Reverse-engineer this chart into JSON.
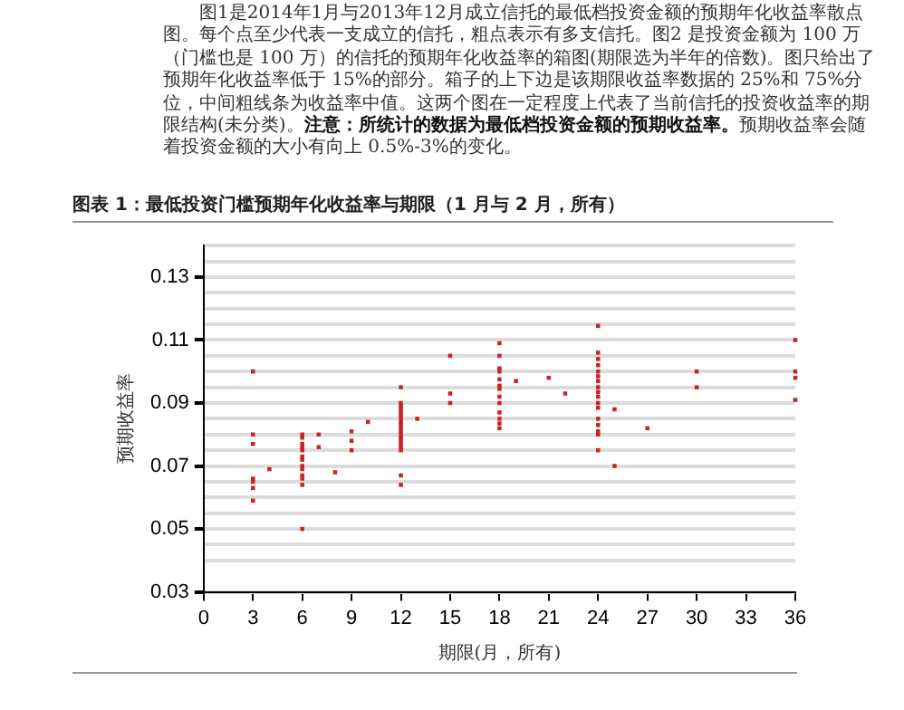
{
  "chart_data": {
    "type": "scatter",
    "title": "图表 1：最低投资门槛预期年化收益率与期限（1 月与 2 月，所有）",
    "annotations": [
      "图1是2014年1月与2013年12月成立信托的最低档投资金额的预期年化收益率散点图。每个点至少代表一支成立的信托，粗点表示有多支信托。图2 是投资金额为 100 万（门槛也是 100 万）的信托的预期年化收益率的箱图(期限选为半年的倍数)。图只给出了预期年化收益率低于 15%的部分。箱子的上下边是该期限收益率数据的 25%和 75%分位，中间粗线条为收益率中值。这两个图在一定程度上代表了当前信托的投资收益率的期限结构(未分类)。",
      "注意：所统计的数据为最低档投资金额的预期收益率。",
      "预期收益率会随着投资金额的大小有向上 0.5%-3%的变化。"
    ],
    "xlabel": "期限(月，所有)",
    "ylabel": "预期收益率",
    "x": [
      3,
      3,
      3,
      3,
      3,
      3,
      3,
      4,
      6,
      6,
      6,
      6,
      6,
      6,
      6,
      6,
      6,
      6,
      6,
      6,
      6,
      7,
      7,
      8,
      9,
      9,
      9,
      10,
      12,
      12,
      12,
      12,
      12,
      12,
      12,
      12,
      12,
      12,
      12,
      12,
      12,
      12,
      12,
      12,
      12,
      12,
      12,
      13,
      15,
      15,
      15,
      18,
      18,
      18,
      18,
      18,
      18,
      18,
      18,
      18,
      18,
      18,
      18,
      18,
      19,
      21,
      22,
      24,
      24,
      24,
      24,
      24,
      24,
      24,
      24,
      24,
      24,
      24,
      24,
      24,
      24,
      24,
      24,
      24,
      25,
      25,
      27,
      30,
      30,
      36,
      36,
      36,
      36
    ],
    "values": [
      0.1,
      0.08,
      0.077,
      0.066,
      0.065,
      0.063,
      0.059,
      0.069,
      0.08,
      0.079,
      0.077,
      0.076,
      0.075,
      0.073,
      0.072,
      0.07,
      0.069,
      0.067,
      0.066,
      0.064,
      0.05,
      0.08,
      0.076,
      0.068,
      0.081,
      0.078,
      0.075,
      0.084,
      0.095,
      0.09,
      0.089,
      0.088,
      0.087,
      0.086,
      0.085,
      0.084,
      0.083,
      0.082,
      0.081,
      0.08,
      0.079,
      0.078,
      0.077,
      0.076,
      0.075,
      0.067,
      0.064,
      0.085,
      0.105,
      0.093,
      0.09,
      0.109,
      0.105,
      0.101,
      0.1,
      0.0975,
      0.0955,
      0.0945,
      0.092,
      0.09,
      0.087,
      0.085,
      0.0835,
      0.082,
      0.097,
      0.098,
      0.093,
      0.1145,
      0.106,
      0.104,
      0.102,
      0.1,
      0.0985,
      0.097,
      0.095,
      0.0935,
      0.092,
      0.09,
      0.0885,
      0.085,
      0.083,
      0.081,
      0.08,
      0.075,
      0.088,
      0.07,
      0.082,
      0.1,
      0.095,
      0.11,
      0.1,
      0.098,
      0.091
    ],
    "color": "#cc2222",
    "marker": "square",
    "xlim": [
      0,
      36
    ],
    "xticks": [
      0,
      3,
      6,
      9,
      12,
      15,
      18,
      21,
      24,
      27,
      30,
      33,
      36
    ],
    "ylim": [
      0.03,
      0.14
    ],
    "yticks": [
      0.03,
      {
        "value": 0.04,
        "label": null
      },
      {
        "value": 0.045,
        "label": null
      },
      0.05,
      {
        "value": 0.055,
        "label": null
      },
      {
        "value": 0.06,
        "label": null
      },
      {
        "value": 0.065,
        "label": null
      },
      0.07,
      {
        "value": 0.075,
        "label": null
      },
      {
        "value": 0.08,
        "label": null
      },
      {
        "value": 0.085,
        "label": null
      },
      0.09,
      {
        "value": 0.095,
        "label": null
      },
      {
        "value": 0.1,
        "label": null
      },
      {
        "value": 0.105,
        "label": null
      },
      0.11,
      {
        "value": 0.115,
        "label": null
      },
      {
        "value": 0.12,
        "label": null
      },
      {
        "value": 0.125,
        "label": null
      },
      0.13,
      {
        "value": 0.135,
        "label": null
      },
      {
        "value": 0.14,
        "label": null
      }
    ],
    "grid": "y",
    "legend": false
  }
}
